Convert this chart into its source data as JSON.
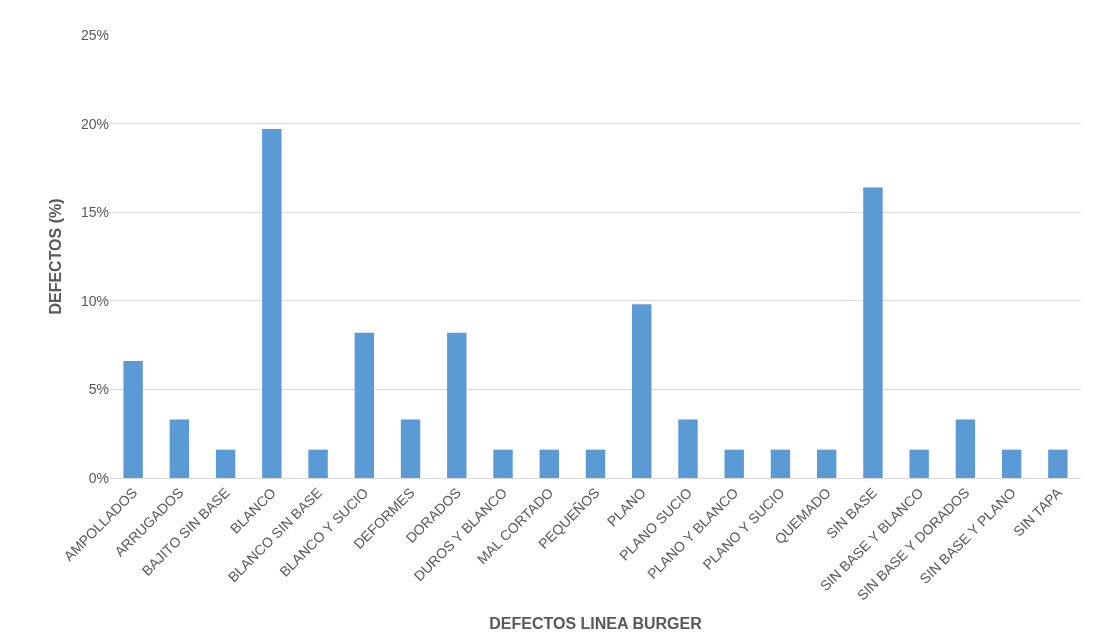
{
  "chart_data": {
    "type": "bar",
    "xlabel": "DEFECTOS LINEA BURGER",
    "ylabel": "DEFECTOS (%)",
    "categories": [
      "AMPOLLADOS",
      "ARRUGADOS",
      "BAJITO SIN BASE",
      "BLANCO",
      "BLANCO SIN BASE",
      "BLANCO Y SUCIO",
      "DEFORMES",
      "DORADOS",
      "DUROS Y BLANCO",
      "MAL CORTADO",
      "PEQUEÑOS",
      "PLANO",
      "PLANO SUCIO",
      "PLANO Y BLANCO",
      "PLANO Y SUCIO",
      "QUEMADO",
      "SIN BASE",
      "SIN BASE Y BLANCO",
      "SIN BASE Y DORADOS",
      "SIN BASE Y PLANO",
      "SIN TAPA"
    ],
    "values": [
      6.6,
      3.3,
      1.6,
      19.7,
      1.6,
      8.2,
      3.3,
      8.2,
      1.6,
      1.6,
      1.6,
      9.8,
      3.3,
      1.6,
      1.6,
      1.6,
      16.4,
      1.6,
      3.3,
      1.6,
      1.6
    ],
    "color": "#5b9bd5",
    "ylim": [
      0,
      25
    ],
    "yticks": [
      {
        "value": 0,
        "label": "0%"
      },
      {
        "value": 5,
        "label": "5%"
      },
      {
        "value": 10,
        "label": "10%"
      },
      {
        "value": 15,
        "label": "15%"
      },
      {
        "value": 20,
        "label": "20%"
      },
      {
        "value": 25,
        "label": "25%"
      }
    ],
    "grid": "y"
  }
}
